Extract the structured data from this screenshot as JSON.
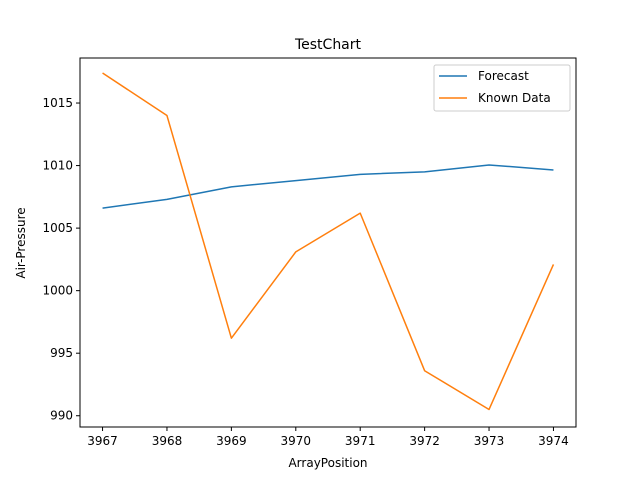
{
  "chart_data": {
    "type": "line",
    "title": "TestChart",
    "xlabel": "ArrayPosition",
    "ylabel": "Air-Pressure",
    "x": [
      3967,
      3968,
      3969,
      3970,
      3971,
      3972,
      3973,
      3974
    ],
    "xlim": [
      3966.65,
      3974.35
    ],
    "ylim": [
      989.1,
      1018.6
    ],
    "xticks": [
      3967,
      3968,
      3969,
      3970,
      3971,
      3972,
      3973,
      3974
    ],
    "yticks": [
      990,
      995,
      1000,
      1005,
      1010,
      1015
    ],
    "grid": false,
    "legend_position": "top-right",
    "series": [
      {
        "name": "Forecast",
        "color": "#1f77b4",
        "values": [
          1006.6,
          1007.3,
          1008.3,
          1008.8,
          1009.3,
          1009.5,
          1010.05,
          1009.65
        ]
      },
      {
        "name": "Known Data",
        "color": "#ff7f0e",
        "values": [
          1017.4,
          1014.0,
          996.2,
          1003.1,
          1006.2,
          993.6,
          990.5,
          1002.1
        ]
      }
    ]
  }
}
